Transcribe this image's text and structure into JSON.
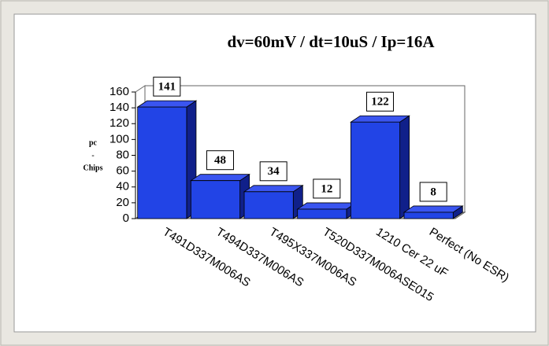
{
  "chart_data": {
    "type": "bar3d",
    "title": "dv=60mV / dt=10uS / Ip=16A",
    "y_label": [
      "pc",
      "-",
      "Chips"
    ],
    "categories": [
      "T491D337M006AS",
      "T494D337M006AS",
      "T495X337M006AS",
      "T520D337M006ASE015",
      "1210 Cer 22 uF",
      "Perfect (No ESR)"
    ],
    "values": [
      141,
      48,
      34,
      12,
      122,
      8
    ],
    "color": "#2244e6",
    "ylim": [
      0,
      160
    ],
    "yticks": [
      0,
      20,
      40,
      60,
      80,
      100,
      120,
      140,
      160
    ],
    "grid": false
  }
}
